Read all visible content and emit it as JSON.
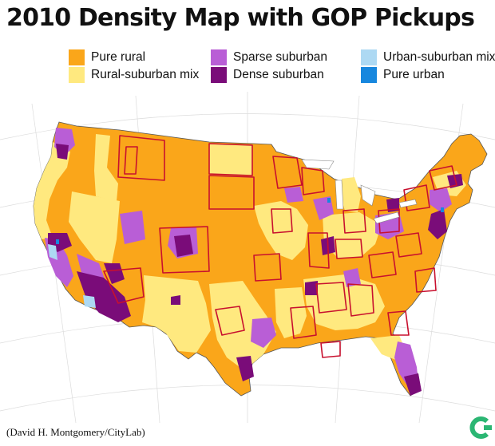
{
  "title": "2010 Density Map with GOP Pickups",
  "legend": [
    {
      "label": "Pure rural",
      "color": "#FAA61A"
    },
    {
      "label": "Rural-suburban mix",
      "color": "#FFE97F"
    },
    {
      "label": "Sparse suburban",
      "color": "#B95ED6"
    },
    {
      "label": "Dense suburban",
      "color": "#7A0C79"
    },
    {
      "label": "Urban-suburban mix",
      "color": "#ADD9F3"
    },
    {
      "label": "Pure urban",
      "color": "#1787DE"
    }
  ],
  "gop_pickup_outline_color": "#C8102E",
  "credit": "(David H. Montgomery/CityLab)",
  "logo_icon": "citylab-logo-icon",
  "logo_color": "#2BB673"
}
